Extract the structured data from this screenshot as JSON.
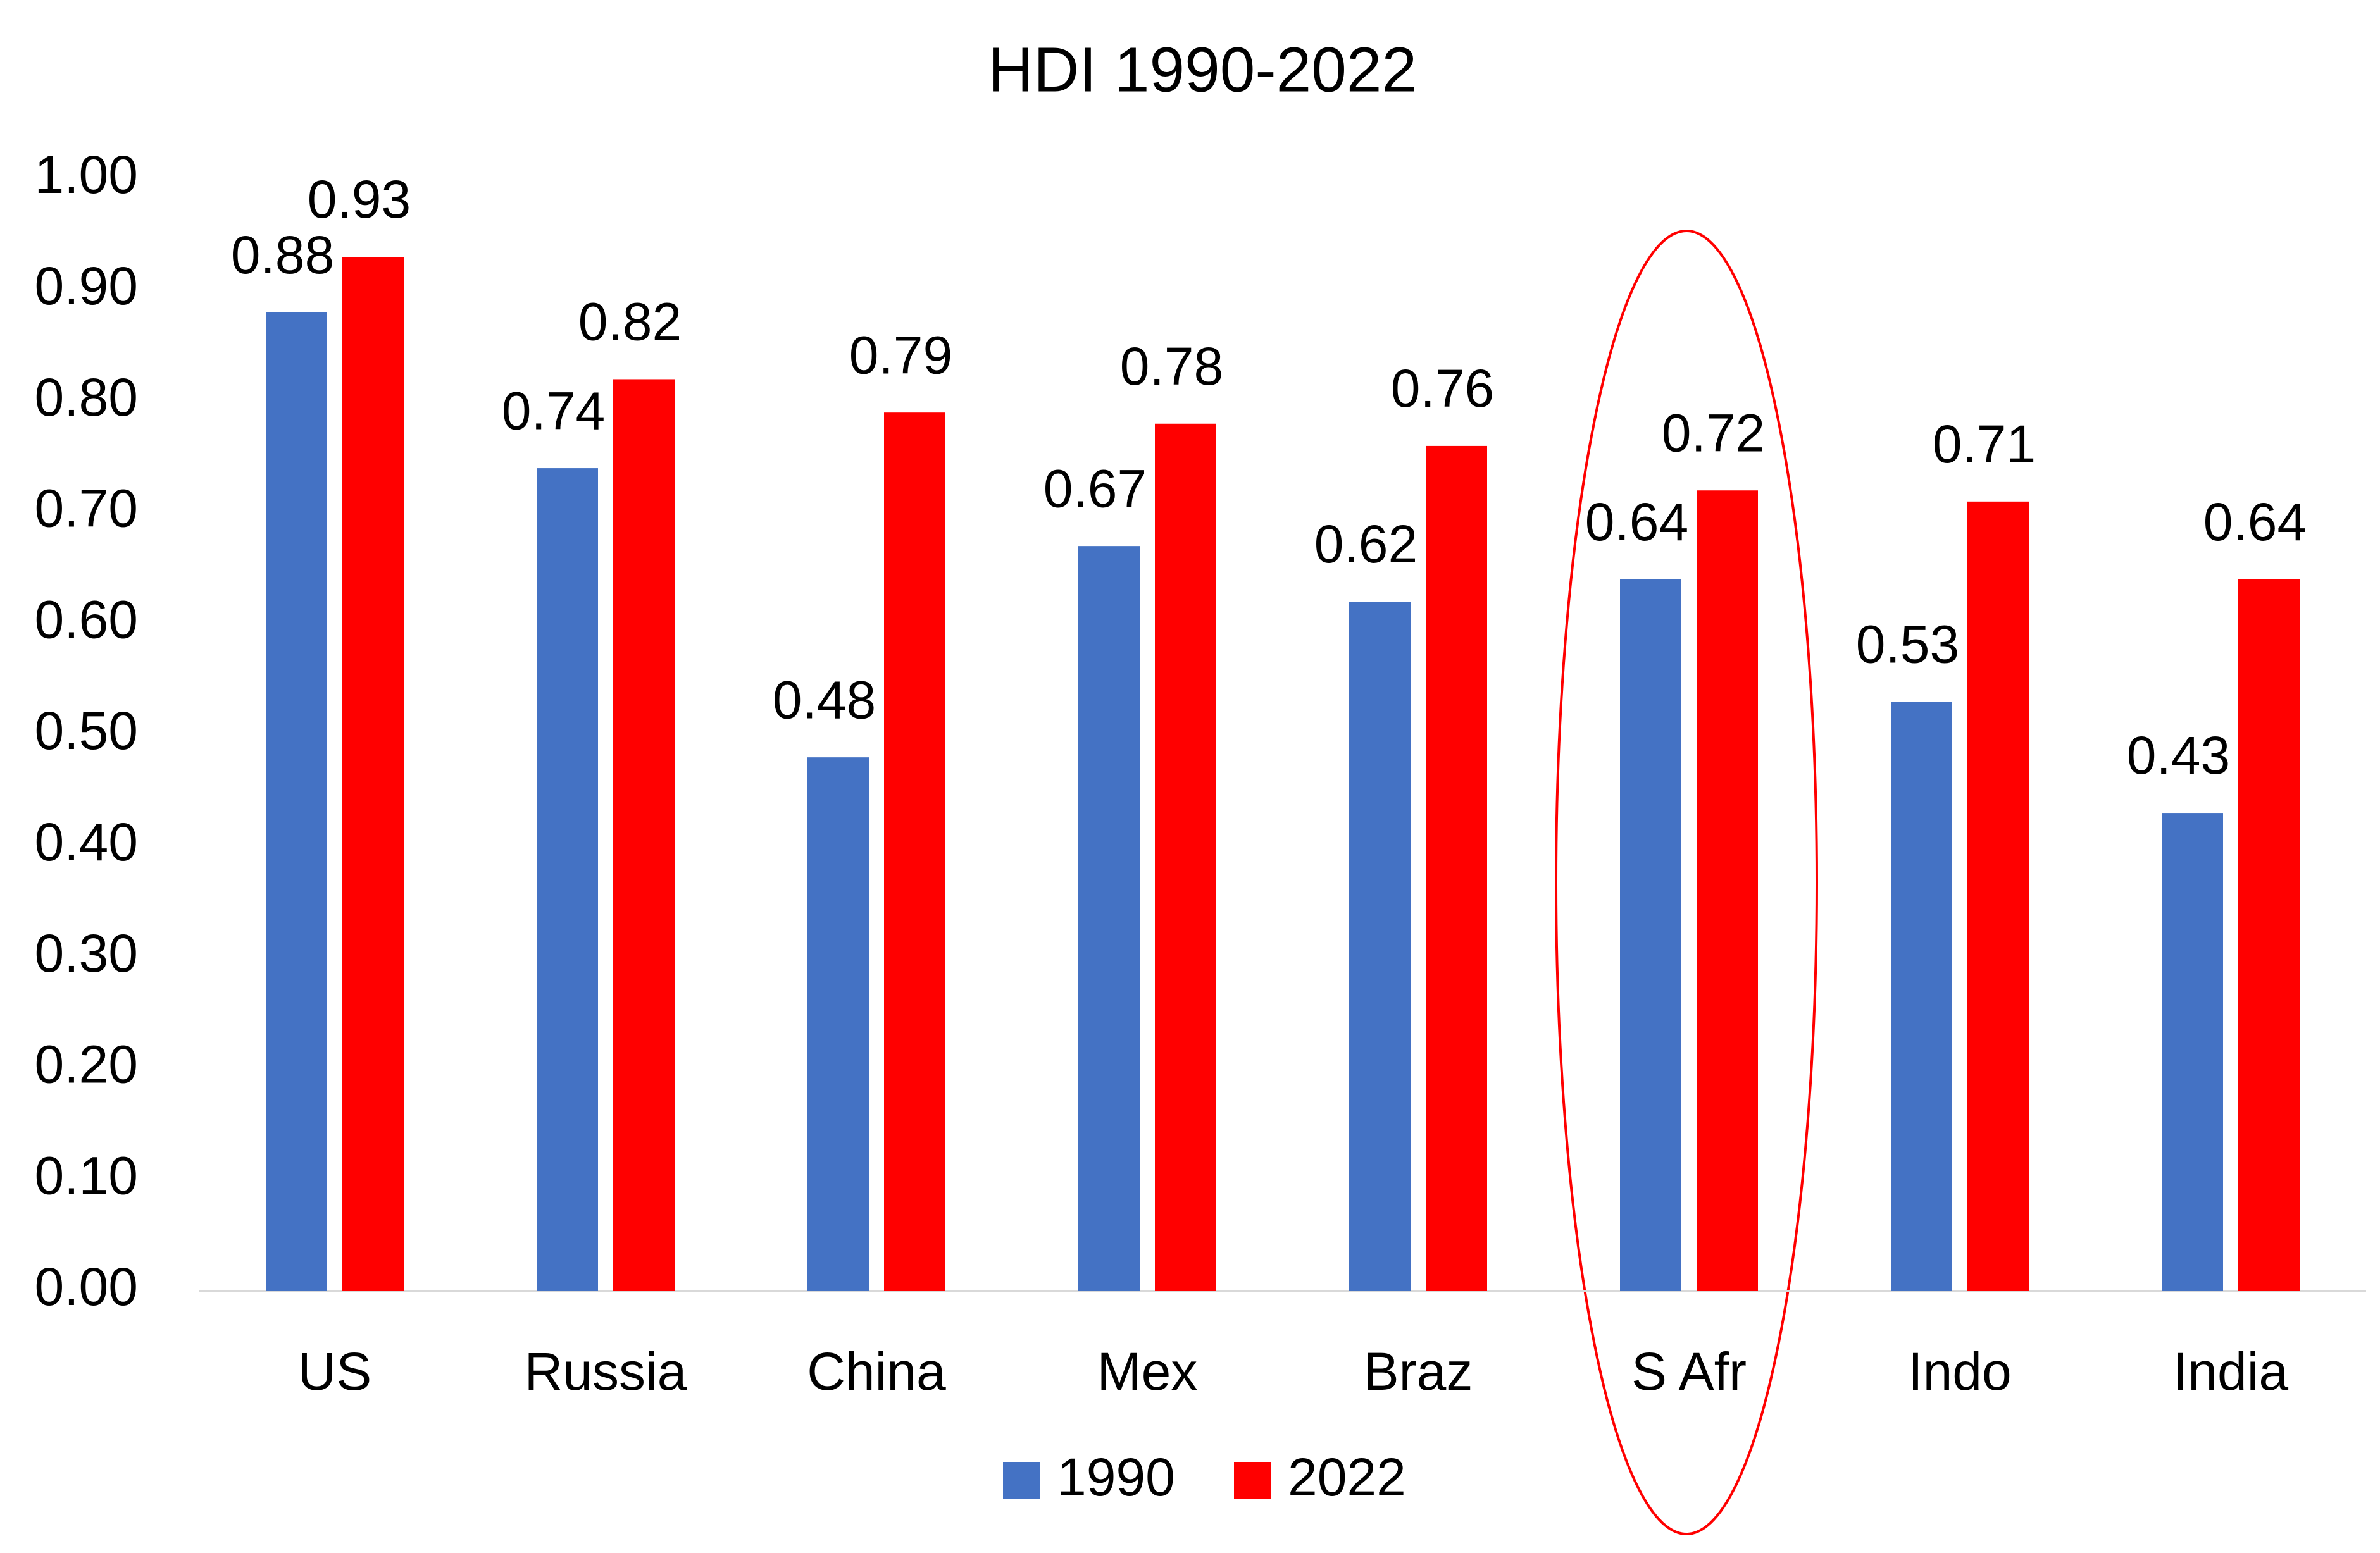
{
  "chart_data": {
    "type": "bar",
    "title": "HDI 1990-2022",
    "categories": [
      "US",
      "Russia",
      "China",
      "Mex",
      "Braz",
      "S Afr",
      "Indo",
      "India"
    ],
    "series": [
      {
        "name": "1990",
        "color": "#4472c4",
        "values": [
          0.88,
          0.74,
          0.48,
          0.67,
          0.62,
          0.64,
          0.53,
          0.43
        ]
      },
      {
        "name": "2022",
        "color": "#ff0000",
        "values": [
          0.93,
          0.82,
          0.79,
          0.78,
          0.76,
          0.72,
          0.71,
          0.64
        ]
      }
    ],
    "ylim": [
      0,
      1
    ],
    "yticks": [
      {
        "value": 0,
        "label": "0.00"
      },
      {
        "value": 0.1,
        "label": "0.10"
      },
      {
        "value": 0.2,
        "label": "0.20"
      },
      {
        "value": 0.3,
        "label": "0.30"
      },
      {
        "value": 0.4,
        "label": "0.40"
      },
      {
        "value": 0.5,
        "label": "0.50"
      },
      {
        "value": 0.6,
        "label": "0.60"
      },
      {
        "value": 0.7,
        "label": "0.70"
      },
      {
        "value": 0.8,
        "label": "0.80"
      },
      {
        "value": 0.9,
        "label": "0.90"
      },
      {
        "value": 1,
        "label": "1.00"
      }
    ],
    "grid": false,
    "legend": "bottom"
  }
}
